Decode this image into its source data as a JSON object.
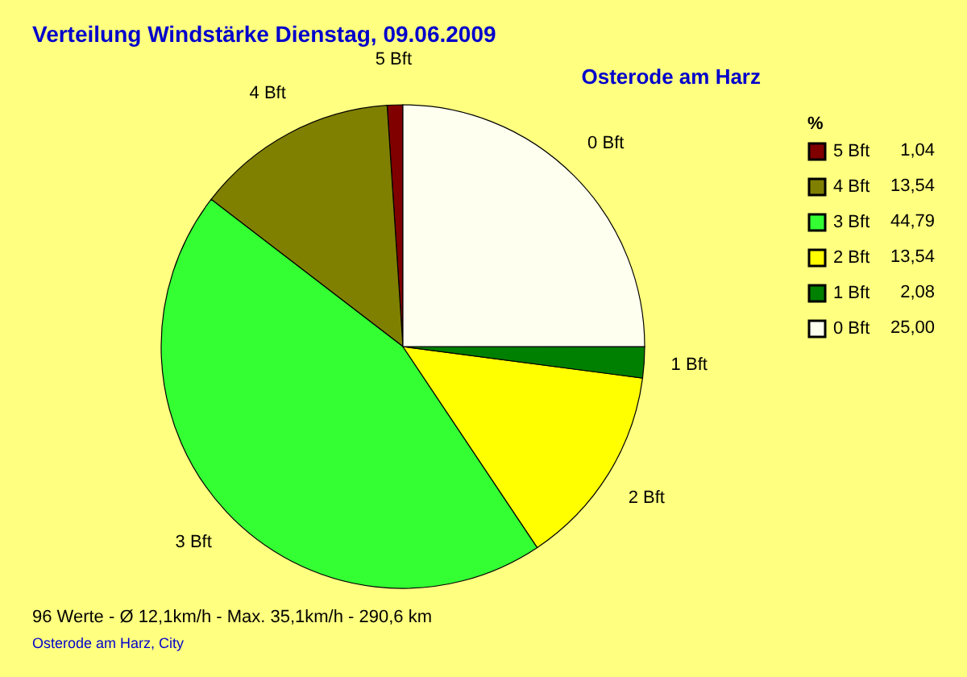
{
  "chart_data": {
    "type": "pie",
    "title": "Verteilung Windstärke  Dienstag, 09.06.2009",
    "subtitle": "Osterode am Harz",
    "legend_title": "%",
    "legend": "top right",
    "categories": [
      "5 Bft",
      "4 Bft",
      "3 Bft",
      "2 Bft",
      "1 Bft",
      "0 Bft"
    ],
    "values": [
      1.04,
      13.54,
      44.79,
      13.54,
      2.08,
      25.0
    ],
    "value_labels": [
      "1,04",
      "13,54",
      "44,79",
      "13,54",
      "2,08",
      "25,00"
    ],
    "colors": [
      "#800000",
      "#808000",
      "#33ff33",
      "#ffff00",
      "#008000",
      "#fffff0"
    ],
    "annotations": [
      "96 Werte   -   Ø 12,1km/h  -  Max. 35,1km/h   -   290,6 km",
      "Osterode am Harz, City"
    ]
  }
}
